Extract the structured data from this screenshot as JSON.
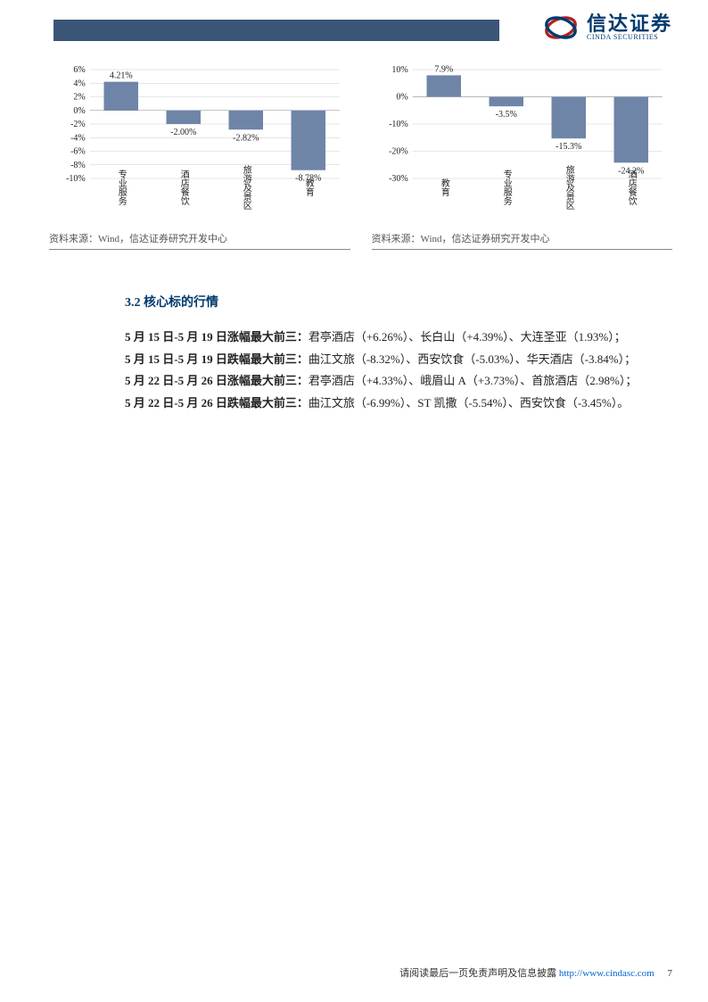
{
  "header": {
    "logo_cn": "信达证券",
    "logo_en": "CINDA SECURITIES"
  },
  "chart_left": {
    "type": "bar",
    "ylim": [
      -10,
      6
    ],
    "ytick_step": 2,
    "categories": [
      "专业服务",
      "酒店餐饮",
      "旅游及景区",
      "教育"
    ],
    "values": [
      4.21,
      -2.0,
      -2.82,
      -8.78
    ],
    "labels": [
      "4.21%",
      "-2.00%",
      "-2.82%",
      "-8.78%"
    ],
    "bar_color": "#6e85a8",
    "grid_color": "#cccccc",
    "background_color": "#ffffff",
    "source": "资料来源：Wind，信达证券研究开发中心"
  },
  "chart_right": {
    "type": "bar",
    "ylim": [
      -30,
      10
    ],
    "ytick_step": 10,
    "categories": [
      "教育",
      "专业服务",
      "旅游及景区",
      "酒店餐饮"
    ],
    "values": [
      7.9,
      -3.5,
      -15.3,
      -24.2
    ],
    "labels": [
      "7.9%",
      "-3.5%",
      "-15.3%",
      "-24.2%"
    ],
    "bar_color": "#6e85a8",
    "grid_color": "#cccccc",
    "background_color": "#ffffff",
    "source": "资料来源：Wind，信达证券研究开发中心"
  },
  "section": {
    "title": "3.2 核心标的行情",
    "paragraphs": [
      {
        "label": "5 月 15 日-5 月 19 日涨幅最大前三：",
        "text": "君亭酒店（+6.26%）、长白山（+4.39%）、大连圣亚（1.93%）；"
      },
      {
        "label": "5 月 15 日-5 月 19 日跌幅最大前三：",
        "text": "曲江文旅（-8.32%）、西安饮食（-5.03%）、华天酒店（-3.84%）；"
      },
      {
        "label": "5 月 22 日-5 月 26 日涨幅最大前三：",
        "text": "君亭酒店（+4.33%）、峨眉山 A（+3.73%）、首旅酒店（2.98%）；"
      },
      {
        "label": "5 月 22 日-5 月 26 日跌幅最大前三：",
        "text": "曲江文旅（-6.99%）、ST 凯撒（-5.54%）、西安饮食（-3.45%）。"
      }
    ]
  },
  "footer": {
    "disclaimer": "请阅读最后一页免责声明及信息披露",
    "url": "http://www.cindasc.com",
    "page": "7"
  }
}
